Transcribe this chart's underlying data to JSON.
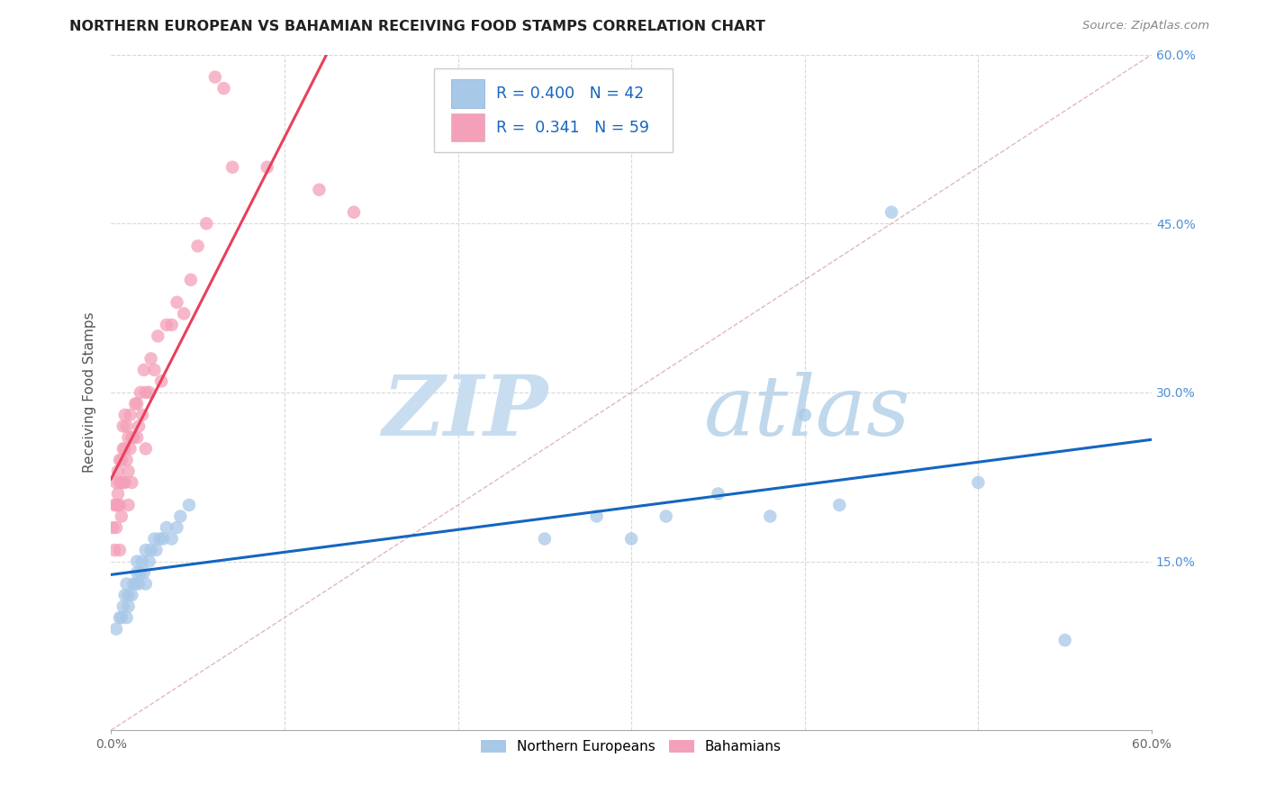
{
  "title": "NORTHERN EUROPEAN VS BAHAMIAN RECEIVING FOOD STAMPS CORRELATION CHART",
  "source": "Source: ZipAtlas.com",
  "ylabel": "Receiving Food Stamps",
  "xlim": [
    0.0,
    0.6
  ],
  "ylim": [
    0.0,
    0.6
  ],
  "blue_R": 0.4,
  "blue_N": 42,
  "pink_R": 0.341,
  "pink_N": 59,
  "blue_color": "#a8c8e8",
  "pink_color": "#f4a0b8",
  "blue_line_color": "#1565c0",
  "pink_line_color": "#e8405a",
  "diagonal_color": "#d0d0d0",
  "grid_color": "#d8d8d8",
  "legend_label_blue": "Northern Europeans",
  "legend_label_pink": "Bahamians",
  "watermark_zip": "ZIP",
  "watermark_atlas": "atlas",
  "watermark_color_zip": "#c8ddf0",
  "watermark_color_atlas": "#c0d8ec",
  "blue_scatter_x": [
    0.003,
    0.005,
    0.006,
    0.007,
    0.008,
    0.009,
    0.009,
    0.01,
    0.01,
    0.012,
    0.013,
    0.014,
    0.015,
    0.015,
    0.016,
    0.017,
    0.018,
    0.019,
    0.02,
    0.02,
    0.022,
    0.023,
    0.025,
    0.026,
    0.028,
    0.03,
    0.032,
    0.035,
    0.038,
    0.04,
    0.045,
    0.25,
    0.28,
    0.3,
    0.32,
    0.35,
    0.38,
    0.4,
    0.42,
    0.45,
    0.5,
    0.55
  ],
  "blue_scatter_y": [
    0.09,
    0.1,
    0.1,
    0.11,
    0.12,
    0.1,
    0.13,
    0.11,
    0.12,
    0.12,
    0.13,
    0.13,
    0.14,
    0.15,
    0.13,
    0.14,
    0.15,
    0.14,
    0.13,
    0.16,
    0.15,
    0.16,
    0.17,
    0.16,
    0.17,
    0.17,
    0.18,
    0.17,
    0.18,
    0.19,
    0.2,
    0.17,
    0.19,
    0.17,
    0.19,
    0.21,
    0.19,
    0.28,
    0.2,
    0.46,
    0.22,
    0.08
  ],
  "pink_scatter_x": [
    0.001,
    0.002,
    0.002,
    0.003,
    0.003,
    0.003,
    0.004,
    0.004,
    0.004,
    0.005,
    0.005,
    0.005,
    0.005,
    0.006,
    0.006,
    0.006,
    0.007,
    0.007,
    0.007,
    0.008,
    0.008,
    0.008,
    0.009,
    0.009,
    0.01,
    0.01,
    0.01,
    0.011,
    0.011,
    0.012,
    0.012,
    0.013,
    0.014,
    0.015,
    0.015,
    0.016,
    0.017,
    0.018,
    0.019,
    0.02,
    0.02,
    0.022,
    0.023,
    0.025,
    0.027,
    0.029,
    0.032,
    0.035,
    0.038,
    0.042,
    0.046,
    0.05,
    0.055,
    0.06,
    0.065,
    0.07,
    0.09,
    0.12,
    0.14
  ],
  "pink_scatter_y": [
    0.18,
    0.16,
    0.2,
    0.18,
    0.2,
    0.22,
    0.2,
    0.21,
    0.23,
    0.16,
    0.2,
    0.22,
    0.24,
    0.19,
    0.22,
    0.24,
    0.22,
    0.25,
    0.27,
    0.22,
    0.25,
    0.28,
    0.24,
    0.27,
    0.2,
    0.23,
    0.26,
    0.25,
    0.28,
    0.22,
    0.26,
    0.26,
    0.29,
    0.26,
    0.29,
    0.27,
    0.3,
    0.28,
    0.32,
    0.25,
    0.3,
    0.3,
    0.33,
    0.32,
    0.35,
    0.31,
    0.36,
    0.36,
    0.38,
    0.37,
    0.4,
    0.43,
    0.45,
    0.58,
    0.57,
    0.5,
    0.5,
    0.48,
    0.46
  ]
}
